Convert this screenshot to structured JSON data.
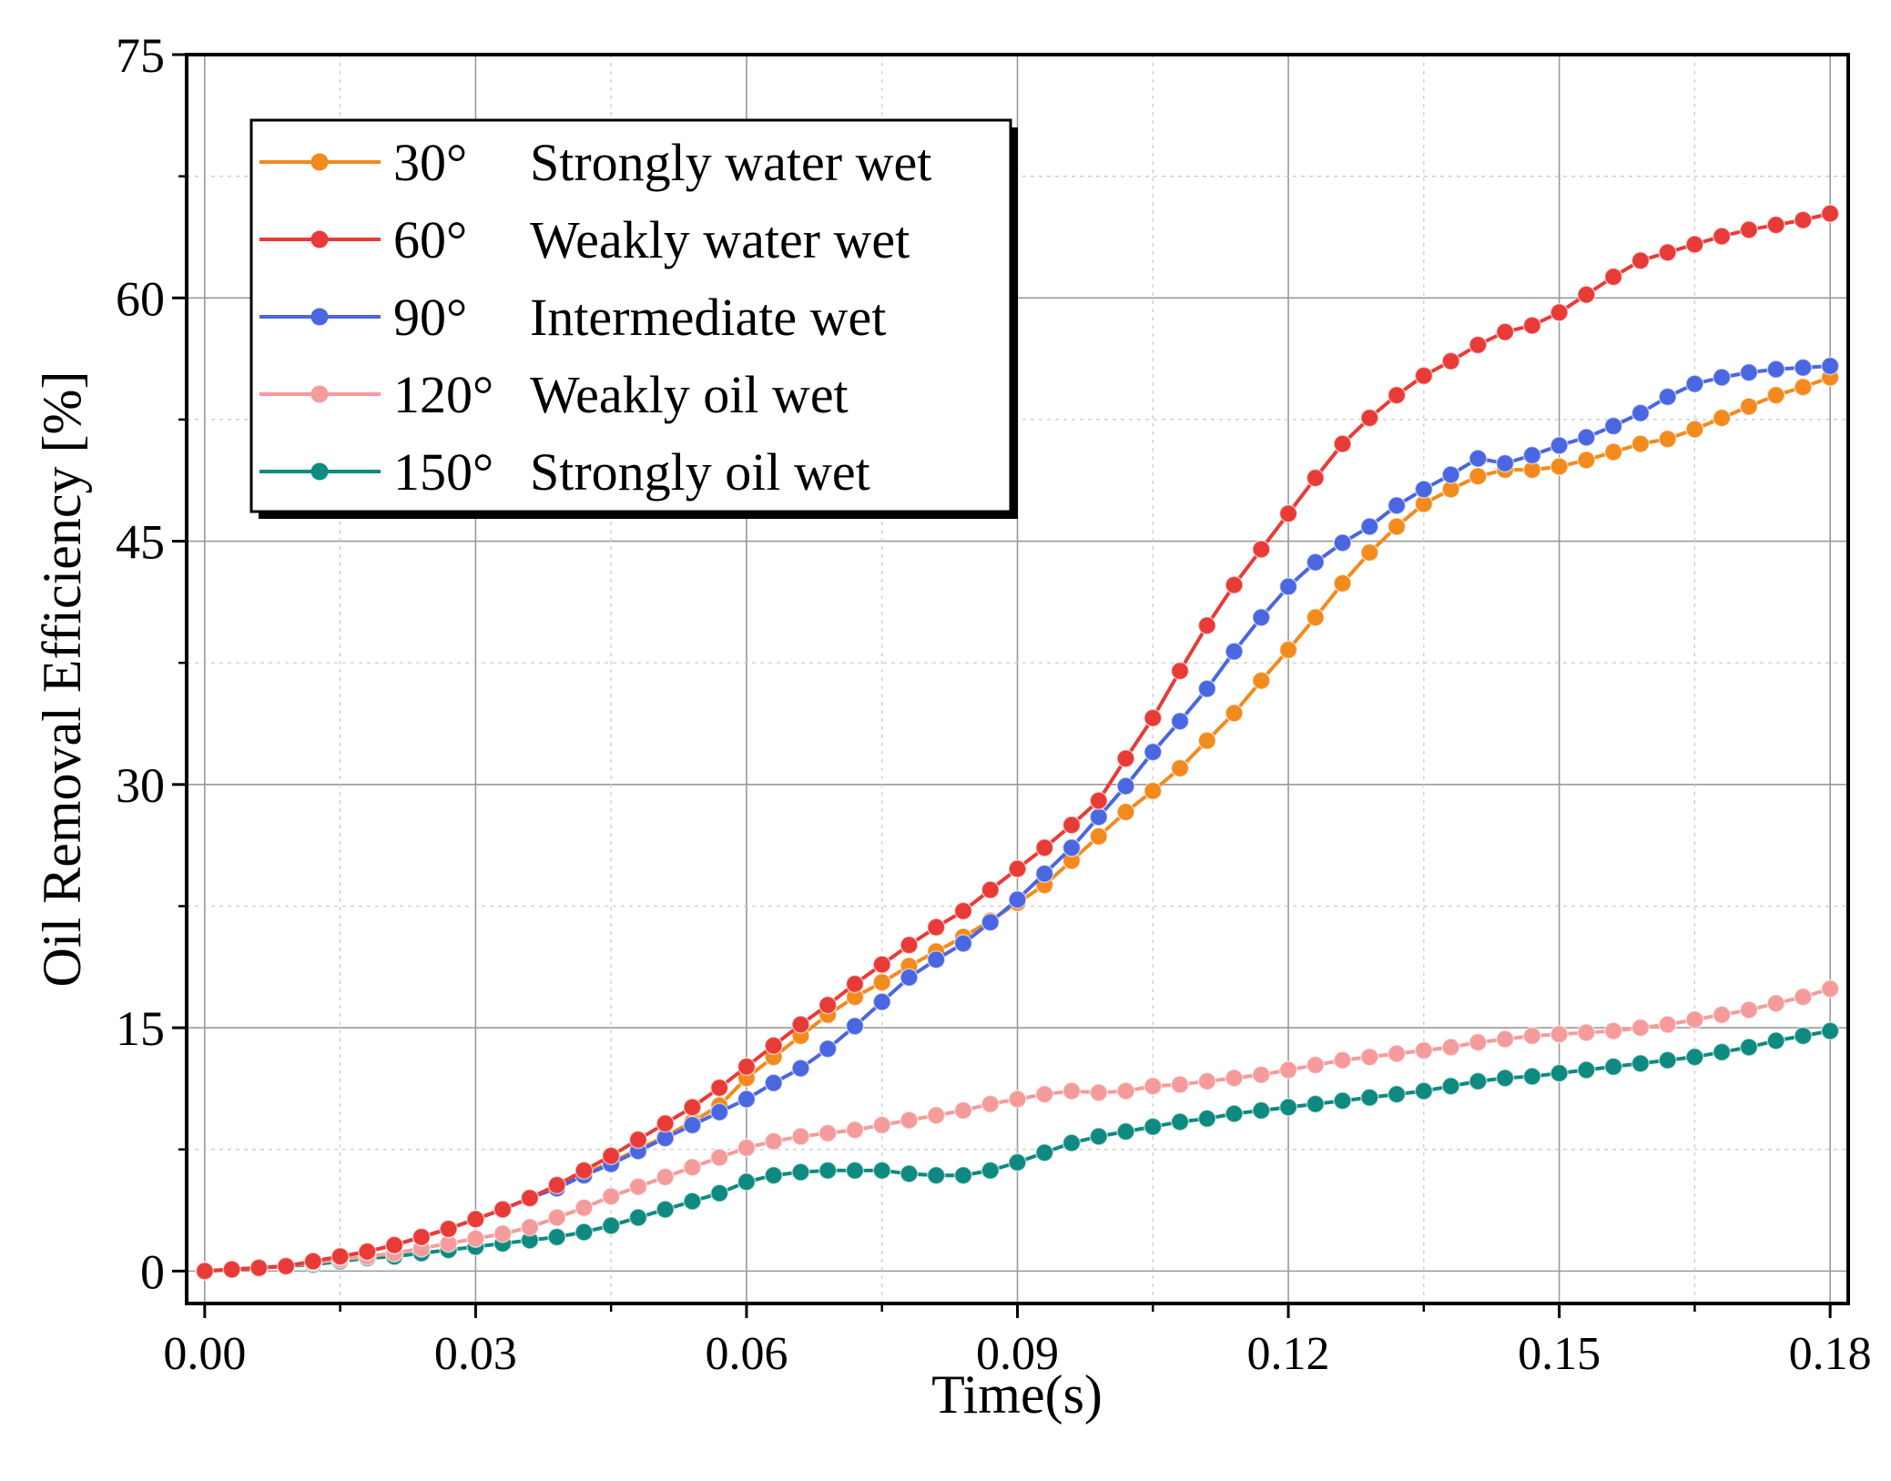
{
  "chart_data": {
    "type": "line",
    "title": "",
    "xlabel": "Time(s)",
    "ylabel": "Oil Removal Efficiency [%]",
    "xlim": [
      -0.002,
      0.182
    ],
    "ylim": [
      -2,
      75
    ],
    "xticks": [
      0.0,
      0.03,
      0.06,
      0.09,
      0.12,
      0.15,
      0.18
    ],
    "xtick_labels": [
      "0.00",
      "0.03",
      "0.06",
      "0.09",
      "0.12",
      "0.15",
      "0.18"
    ],
    "yticks": [
      0,
      15,
      30,
      45,
      60,
      75
    ],
    "ytick_labels": [
      "0",
      "15",
      "30",
      "45",
      "60",
      "75"
    ],
    "minor_grid_x": [
      0.015,
      0.045,
      0.075,
      0.105,
      0.135,
      0.165
    ],
    "minor_grid_y": [
      7.5,
      22.5,
      37.5,
      52.5,
      67.5
    ],
    "grid": true,
    "legend_position": "top-left",
    "x": [
      0.0,
      0.003,
      0.006,
      0.009,
      0.012,
      0.015,
      0.018,
      0.021,
      0.024,
      0.027,
      0.03,
      0.033,
      0.036,
      0.039,
      0.042,
      0.045,
      0.048,
      0.051,
      0.054,
      0.057,
      0.06,
      0.063,
      0.066,
      0.069,
      0.072,
      0.075,
      0.078,
      0.081,
      0.084,
      0.087,
      0.09,
      0.093,
      0.096,
      0.099,
      0.102,
      0.105,
      0.108,
      0.111,
      0.114,
      0.117,
      0.12,
      0.123,
      0.126,
      0.129,
      0.132,
      0.135,
      0.138,
      0.141,
      0.144,
      0.147,
      0.15,
      0.153,
      0.156,
      0.159,
      0.162,
      0.165,
      0.168,
      0.171,
      0.174,
      0.177,
      0.18
    ],
    "series": [
      {
        "name": "30°   Strongly water wet",
        "label_angle": "30°",
        "label_text": "Strongly water wet",
        "color": "#f28a1e",
        "values": [
          0.0,
          0.1,
          0.2,
          0.3,
          0.6,
          0.9,
          1.2,
          1.6,
          2.1,
          2.6,
          3.2,
          3.8,
          4.5,
          5.2,
          6.0,
          6.7,
          7.5,
          8.3,
          9.2,
          10.2,
          11.9,
          13.2,
          14.5,
          15.8,
          16.9,
          17.8,
          18.8,
          19.7,
          20.6,
          21.6,
          22.7,
          23.8,
          25.3,
          26.8,
          28.3,
          29.6,
          31.0,
          32.7,
          34.4,
          36.4,
          38.3,
          40.3,
          42.4,
          44.3,
          45.9,
          47.3,
          48.2,
          49.0,
          49.4,
          49.4,
          49.6,
          50.0,
          50.5,
          51.0,
          51.3,
          51.9,
          52.6,
          53.3,
          54.0,
          54.5,
          55.1
        ]
      },
      {
        "name": "60°   Weakly water wet",
        "label_angle": "60°",
        "label_text": "Weakly water wet",
        "color": "#e83b37",
        "values": [
          0.0,
          0.1,
          0.2,
          0.3,
          0.6,
          0.9,
          1.2,
          1.6,
          2.1,
          2.6,
          3.2,
          3.8,
          4.5,
          5.3,
          6.2,
          7.1,
          8.1,
          9.1,
          10.1,
          11.3,
          12.6,
          13.9,
          15.2,
          16.4,
          17.7,
          18.9,
          20.1,
          21.2,
          22.2,
          23.5,
          24.8,
          26.1,
          27.5,
          29.0,
          31.6,
          34.1,
          37.0,
          39.8,
          42.3,
          44.5,
          46.7,
          48.9,
          51.0,
          52.6,
          54.0,
          55.2,
          56.1,
          57.1,
          57.9,
          58.3,
          59.1,
          60.2,
          61.3,
          62.3,
          62.8,
          63.3,
          63.8,
          64.2,
          64.5,
          64.8,
          65.2
        ]
      },
      {
        "name": "90°   Intermediate wet",
        "label_angle": "90°",
        "label_text": "Intermediate wet",
        "color": "#4a66e0",
        "values": [
          0.0,
          0.1,
          0.2,
          0.3,
          0.6,
          0.9,
          1.2,
          1.6,
          2.1,
          2.6,
          3.2,
          3.8,
          4.5,
          5.1,
          5.9,
          6.6,
          7.4,
          8.2,
          9.0,
          9.8,
          10.6,
          11.6,
          12.5,
          13.7,
          15.1,
          16.6,
          18.1,
          19.2,
          20.2,
          21.5,
          22.9,
          24.5,
          26.1,
          28.0,
          29.9,
          32.0,
          33.9,
          35.9,
          38.2,
          40.3,
          42.2,
          43.7,
          44.9,
          45.9,
          47.2,
          48.2,
          49.1,
          50.1,
          49.8,
          50.3,
          50.9,
          51.4,
          52.1,
          52.9,
          53.9,
          54.7,
          55.1,
          55.4,
          55.6,
          55.7,
          55.8
        ]
      },
      {
        "name": "120° Weakly oil wet",
        "label_angle": "120°",
        "label_text": "Weakly oil wet",
        "color": "#f59b9b",
        "values": [
          0.0,
          0.1,
          0.2,
          0.3,
          0.5,
          0.7,
          0.9,
          1.1,
          1.4,
          1.7,
          2.0,
          2.3,
          2.7,
          3.3,
          3.9,
          4.6,
          5.2,
          5.8,
          6.4,
          7.0,
          7.6,
          8.0,
          8.3,
          8.5,
          8.7,
          9.0,
          9.3,
          9.6,
          9.9,
          10.3,
          10.6,
          10.9,
          11.1,
          11.0,
          11.1,
          11.4,
          11.5,
          11.7,
          11.9,
          12.1,
          12.4,
          12.7,
          13.0,
          13.2,
          13.4,
          13.6,
          13.8,
          14.1,
          14.3,
          14.5,
          14.6,
          14.7,
          14.8,
          15.0,
          15.2,
          15.5,
          15.8,
          16.1,
          16.5,
          16.9,
          17.4
        ]
      },
      {
        "name": "150° Strongly oil wet",
        "label_angle": "150°",
        "label_text": "Strongly oil wet",
        "color": "#0e8a80",
        "values": [
          0.0,
          0.1,
          0.2,
          0.3,
          0.4,
          0.6,
          0.8,
          0.9,
          1.1,
          1.3,
          1.5,
          1.7,
          1.9,
          2.1,
          2.4,
          2.8,
          3.3,
          3.8,
          4.3,
          4.8,
          5.5,
          5.9,
          6.1,
          6.2,
          6.2,
          6.2,
          6.0,
          5.9,
          5.9,
          6.2,
          6.7,
          7.3,
          7.9,
          8.3,
          8.6,
          8.9,
          9.2,
          9.4,
          9.7,
          9.9,
          10.1,
          10.3,
          10.5,
          10.7,
          10.9,
          11.1,
          11.4,
          11.7,
          11.9,
          12.0,
          12.2,
          12.4,
          12.6,
          12.8,
          13.0,
          13.2,
          13.5,
          13.8,
          14.2,
          14.5,
          14.8
        ]
      }
    ]
  }
}
